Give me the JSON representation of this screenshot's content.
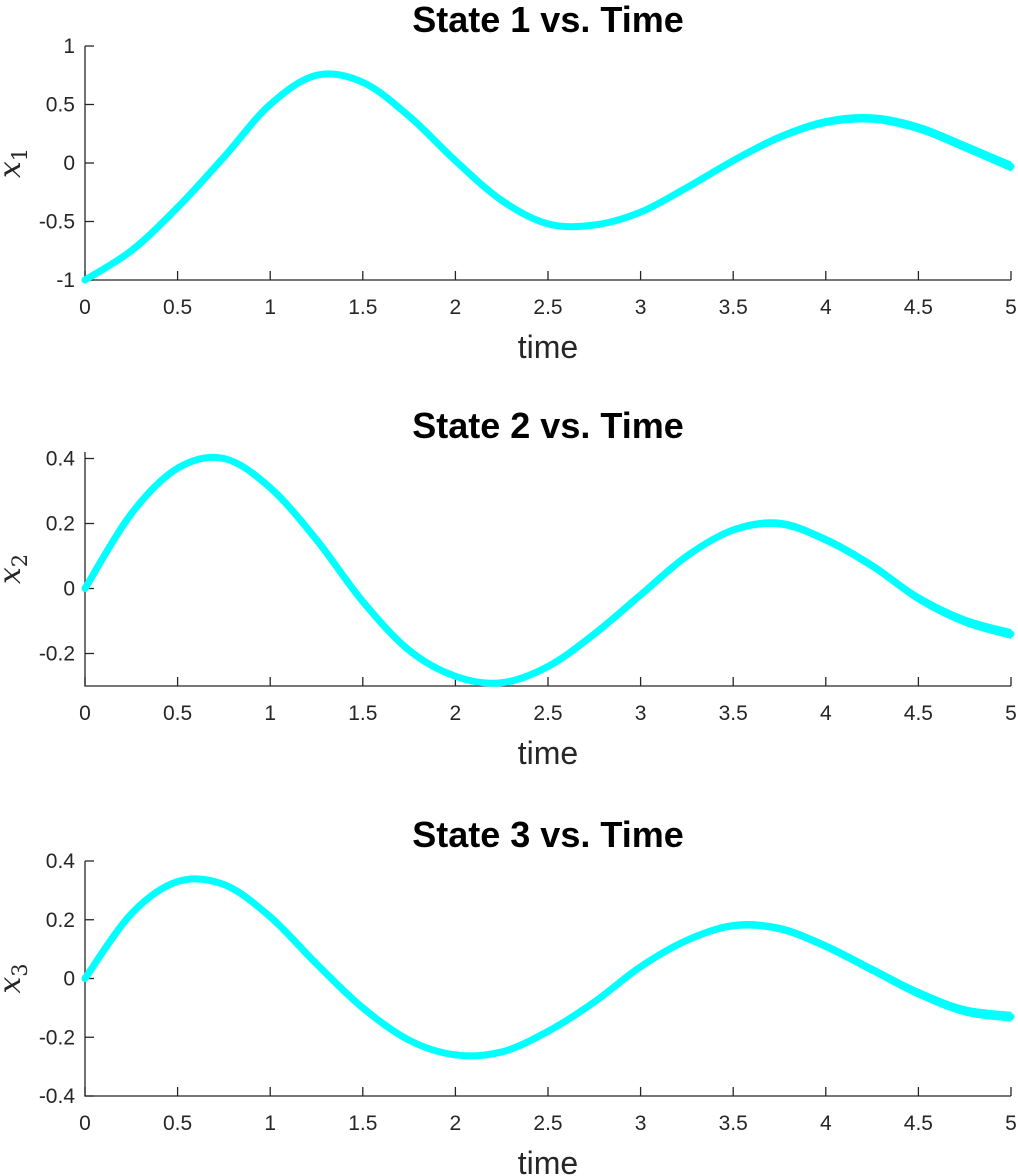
{
  "line_color": "#00FFFF",
  "chart_data": [
    {
      "type": "line",
      "title": "State 1 vs. Time",
      "xlabel": "time",
      "ylabel": "x",
      "ylabel_subscript": "1",
      "xlim": [
        0,
        5
      ],
      "ylim": [
        -1,
        1
      ],
      "xticks": [
        0,
        0.5,
        1,
        1.5,
        2,
        2.5,
        3,
        3.5,
        4,
        4.5,
        5
      ],
      "xtick_labels": [
        "0",
        "0.5",
        "1",
        "1.5",
        "2",
        "2.5",
        "3",
        "3.5",
        "4",
        "4.5",
        "5"
      ],
      "yticks": [
        -1,
        -0.5,
        0,
        0.5,
        1
      ],
      "ytick_labels": [
        "-1",
        "-0.5",
        "0",
        "0.5",
        "1"
      ],
      "grid": false,
      "series": [
        {
          "x": [
            0,
            0.25,
            0.5,
            0.75,
            1.0,
            1.25,
            1.5,
            1.75,
            2.0,
            2.25,
            2.5,
            2.75,
            3.0,
            3.25,
            3.5,
            3.75,
            4.0,
            4.25,
            4.5,
            4.75,
            5.0
          ],
          "y": [
            -1.0,
            -0.75,
            -0.38,
            0.05,
            0.5,
            0.75,
            0.69,
            0.4,
            0.02,
            -0.32,
            -0.52,
            -0.53,
            -0.42,
            -0.21,
            0.02,
            0.22,
            0.35,
            0.38,
            0.3,
            0.14,
            -0.03
          ]
        }
      ]
    },
    {
      "type": "line",
      "title": "State 2 vs. Time",
      "xlabel": "time",
      "ylabel": "x",
      "ylabel_subscript": "2",
      "xlim": [
        0,
        5
      ],
      "ylim": [
        -0.3,
        0.42
      ],
      "xticks": [
        0,
        0.5,
        1,
        1.5,
        2,
        2.5,
        3,
        3.5,
        4,
        4.5,
        5
      ],
      "xtick_labels": [
        "0",
        "0.5",
        "1",
        "1.5",
        "2",
        "2.5",
        "3",
        "3.5",
        "4",
        "4.5",
        "5"
      ],
      "yticks": [
        -0.2,
        0,
        0.2,
        0.4
      ],
      "ytick_labels": [
        "-0.2",
        "0",
        "0.2",
        "0.4"
      ],
      "grid": false,
      "series": [
        {
          "x": [
            0,
            0.25,
            0.5,
            0.75,
            1.0,
            1.25,
            1.5,
            1.75,
            2.0,
            2.25,
            2.5,
            2.75,
            3.0,
            3.25,
            3.5,
            3.75,
            4.0,
            4.25,
            4.5,
            4.75,
            5.0
          ],
          "y": [
            0.0,
            0.23,
            0.37,
            0.4,
            0.31,
            0.15,
            -0.04,
            -0.19,
            -0.27,
            -0.29,
            -0.24,
            -0.14,
            -0.02,
            0.1,
            0.18,
            0.2,
            0.15,
            0.07,
            -0.03,
            -0.1,
            -0.14
          ]
        }
      ]
    },
    {
      "type": "line",
      "title": "State 3 vs. Time",
      "xlabel": "time",
      "ylabel": "x",
      "ylabel_subscript": "3",
      "xlim": [
        0,
        5
      ],
      "ylim": [
        -0.4,
        0.4
      ],
      "xticks": [
        0,
        0.5,
        1,
        1.5,
        2,
        2.5,
        3,
        3.5,
        4,
        4.5,
        5
      ],
      "xtick_labels": [
        "0",
        "0.5",
        "1",
        "1.5",
        "2",
        "2.5",
        "3",
        "3.5",
        "4",
        "4.5",
        "5"
      ],
      "yticks": [
        -0.4,
        -0.2,
        0,
        0.2,
        0.4
      ],
      "ytick_labels": [
        "-0.4",
        "-0.2",
        "0",
        "0.2",
        "0.4"
      ],
      "grid": false,
      "series": [
        {
          "x": [
            0,
            0.25,
            0.5,
            0.75,
            1.0,
            1.25,
            1.5,
            1.75,
            2.0,
            2.25,
            2.5,
            2.75,
            3.0,
            3.25,
            3.5,
            3.75,
            4.0,
            4.25,
            4.5,
            4.75,
            5.0
          ],
          "y": [
            0.0,
            0.22,
            0.33,
            0.32,
            0.21,
            0.05,
            -0.1,
            -0.21,
            -0.26,
            -0.25,
            -0.18,
            -0.08,
            0.04,
            0.13,
            0.18,
            0.17,
            0.11,
            0.03,
            -0.05,
            -0.11,
            -0.13
          ]
        }
      ]
    }
  ]
}
